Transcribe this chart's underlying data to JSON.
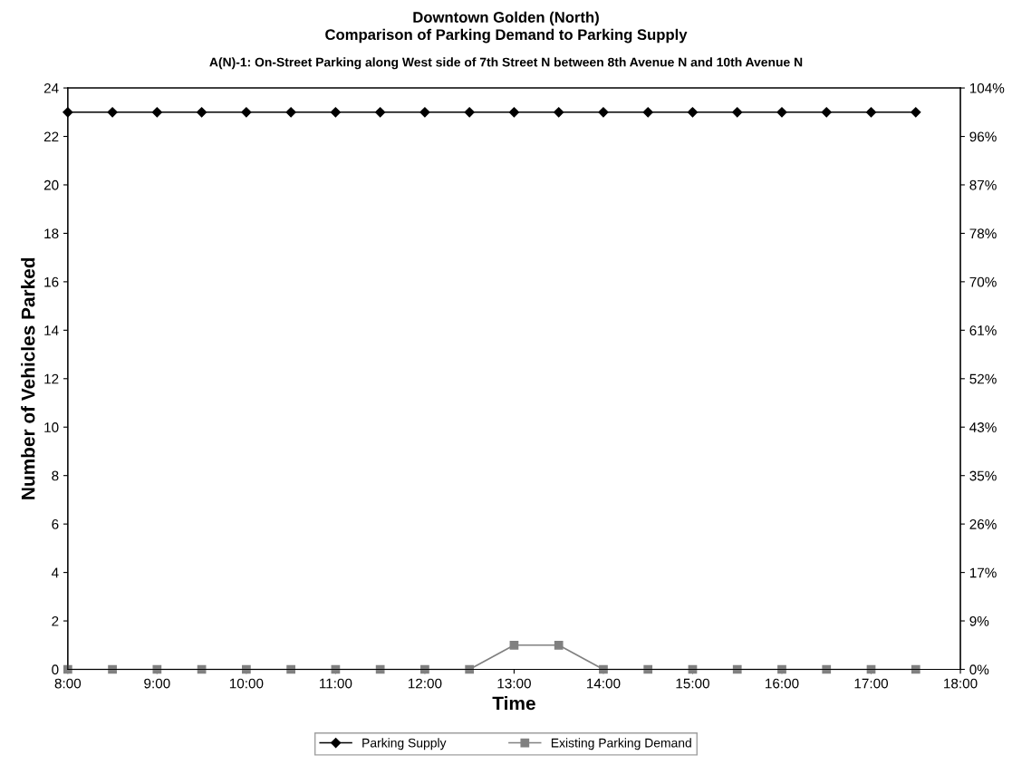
{
  "chart_data": {
    "type": "line",
    "title": "Downtown Golden (North)\nComparison of Parking Demand to Parking Supply",
    "subtitle": "A(N)-1: On-Street Parking along West side of 7th Street N between 8th Avenue N and 10th Avenue N",
    "xlabel": "Time",
    "ylabel": "Number of Vehicles Parked",
    "x": [
      8,
      8.5,
      9,
      9.5,
      10,
      10.5,
      11,
      11.5,
      12,
      12.5,
      13,
      13.5,
      14,
      14.5,
      15,
      15.5,
      16,
      16.5,
      17,
      17.5
    ],
    "series": [
      {
        "name": "Parking Supply",
        "color": "#000000",
        "marker": "diamond",
        "values": [
          23,
          23,
          23,
          23,
          23,
          23,
          23,
          23,
          23,
          23,
          23,
          23,
          23,
          23,
          23,
          23,
          23,
          23,
          23,
          23
        ]
      },
      {
        "name": "Existing Parking Demand",
        "color": "#808080",
        "marker": "square",
        "values": [
          0,
          0,
          0,
          0,
          0,
          0,
          0,
          0,
          0,
          0,
          1,
          1,
          0,
          0,
          0,
          0,
          0,
          0,
          0,
          0
        ]
      }
    ],
    "xlim": [
      8,
      18
    ],
    "xticks": [
      {
        "value": 8,
        "label": "8:00"
      },
      {
        "value": 9,
        "label": "9:00"
      },
      {
        "value": 10,
        "label": "10:00"
      },
      {
        "value": 11,
        "label": "11:00"
      },
      {
        "value": 12,
        "label": "12:00"
      },
      {
        "value": 13,
        "label": "13:00"
      },
      {
        "value": 14,
        "label": "14:00"
      },
      {
        "value": 15,
        "label": "15:00"
      },
      {
        "value": 16,
        "label": "16:00"
      },
      {
        "value": 17,
        "label": "17:00"
      },
      {
        "value": 18,
        "label": "18:00"
      }
    ],
    "ylim": [
      0,
      24
    ],
    "yticks": [
      0,
      2,
      4,
      6,
      8,
      10,
      12,
      14,
      16,
      18,
      20,
      22,
      24
    ],
    "y2lim": [
      0,
      104.35
    ],
    "y2ticks": [
      {
        "value": 0,
        "label": "0%"
      },
      {
        "value": 8.7,
        "label": "9%"
      },
      {
        "value": 17.39,
        "label": "17%"
      },
      {
        "value": 26.09,
        "label": "26%"
      },
      {
        "value": 34.78,
        "label": "35%"
      },
      {
        "value": 43.48,
        "label": "43%"
      },
      {
        "value": 52.17,
        "label": "52%"
      },
      {
        "value": 60.87,
        "label": "61%"
      },
      {
        "value": 69.57,
        "label": "70%"
      },
      {
        "value": 78.26,
        "label": "78%"
      },
      {
        "value": 86.96,
        "label": "87%"
      },
      {
        "value": 95.65,
        "label": "96%"
      },
      {
        "value": 104.35,
        "label": "104%"
      }
    ],
    "grid": false,
    "legend": "bottom",
    "line_style": "solid"
  }
}
